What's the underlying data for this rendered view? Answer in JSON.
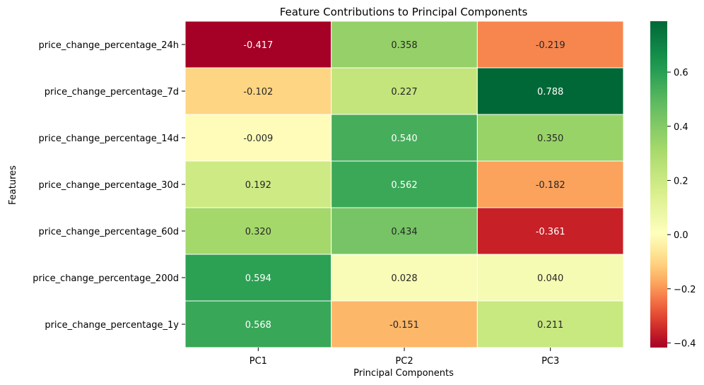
{
  "chart_data": {
    "type": "heatmap",
    "title": "Feature Contributions to Principal Components",
    "xlabel": "Principal Components",
    "ylabel": "Features",
    "x_categories": [
      "PC1",
      "PC2",
      "PC3"
    ],
    "y_categories": [
      "price_change_percentage_24h",
      "price_change_percentage_7d",
      "price_change_percentage_14d",
      "price_change_percentage_30d",
      "price_change_percentage_60d",
      "price_change_percentage_200d",
      "price_change_percentage_1y"
    ],
    "values": [
      [
        -0.417,
        0.358,
        -0.219
      ],
      [
        -0.102,
        0.227,
        0.788
      ],
      [
        -0.009,
        0.54,
        0.35
      ],
      [
        0.192,
        0.562,
        -0.182
      ],
      [
        0.32,
        0.434,
        -0.361
      ],
      [
        0.594,
        0.028,
        0.04
      ],
      [
        0.568,
        -0.151,
        0.211
      ]
    ],
    "cell_labels": [
      [
        "-0.417",
        "0.358",
        "-0.219"
      ],
      [
        "-0.102",
        "0.227",
        "0.788"
      ],
      [
        "-0.009",
        "0.540",
        "0.350"
      ],
      [
        "0.192",
        "0.562",
        "-0.182"
      ],
      [
        "0.320",
        "0.434",
        "-0.361"
      ],
      [
        "0.594",
        "0.028",
        "0.040"
      ],
      [
        "0.568",
        "-0.151",
        "0.211"
      ]
    ],
    "colormap": "RdYlGn",
    "color_range": [
      -0.417,
      0.788
    ],
    "colorbar_ticks": [
      -0.4,
      -0.2,
      0.0,
      0.2,
      0.4,
      0.6
    ],
    "colorbar_tick_labels": [
      "−0.4",
      "−0.2",
      "0.0",
      "0.2",
      "0.4",
      "0.6"
    ],
    "colorbar_location": "right",
    "gridlines": false
  }
}
